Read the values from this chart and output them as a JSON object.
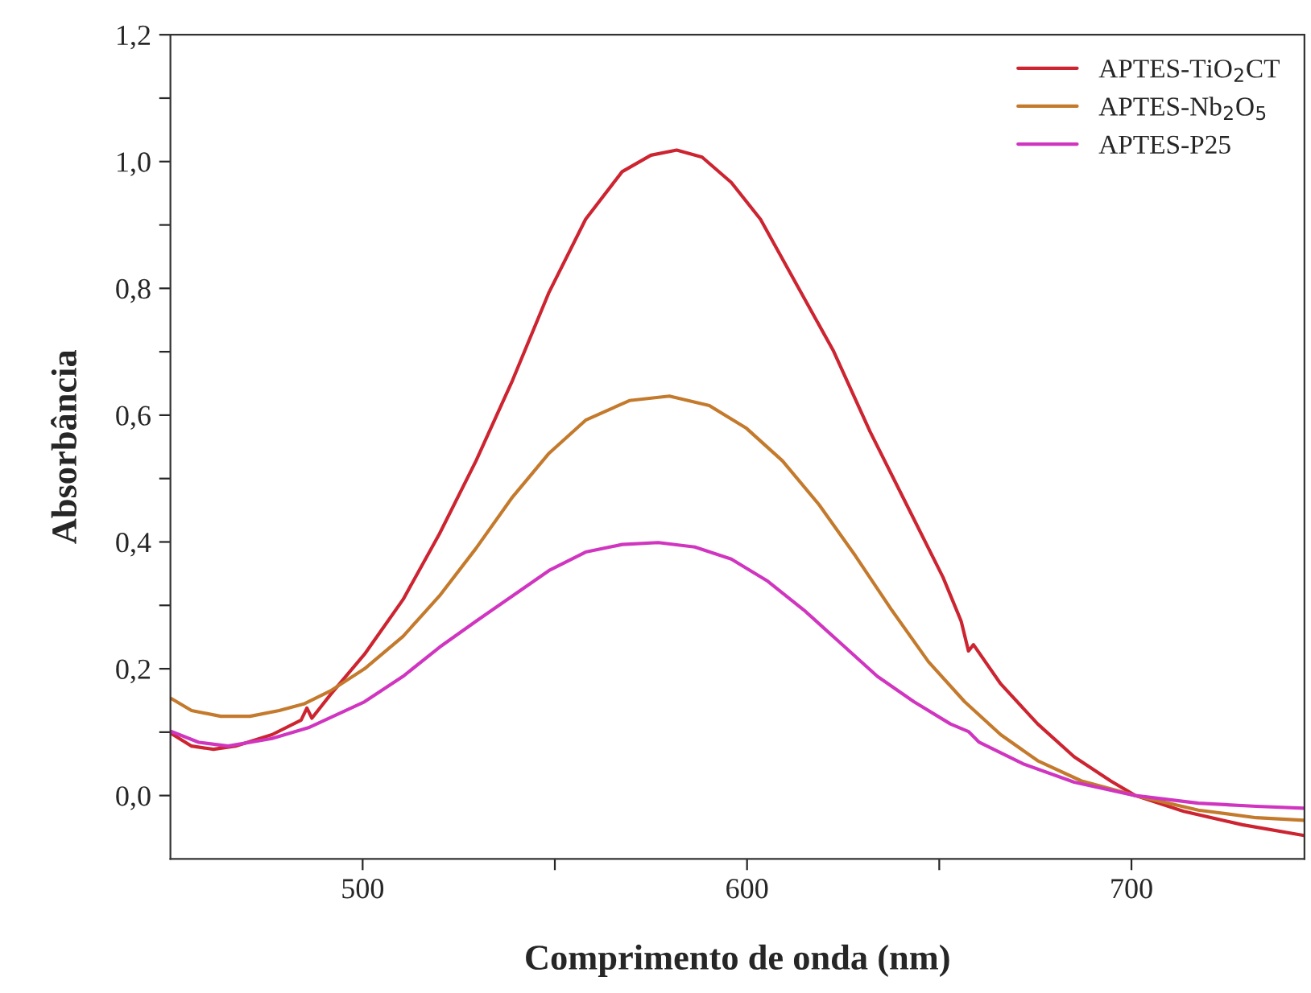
{
  "chart_data": {
    "type": "line",
    "xlabel": "Comprimento de onda (nm)",
    "ylabel": "Absorbância",
    "xlim": [
      450,
      745
    ],
    "ylim": [
      -0.1,
      1.2
    ],
    "xticks": [
      500,
      {
        "value": 550,
        "label": null
      },
      600,
      {
        "value": 650,
        "label": null
      },
      700
    ],
    "yticks": [
      {
        "value": 0,
        "label": "0,0"
      },
      {
        "value": 0.1,
        "label": null
      },
      {
        "value": 0.2,
        "label": "0,2"
      },
      {
        "value": 0.3,
        "label": null
      },
      {
        "value": 0.4,
        "label": "0,4"
      },
      {
        "value": 0.5,
        "label": null
      },
      {
        "value": 0.6,
        "label": "0,6"
      },
      {
        "value": 0.7,
        "label": null
      },
      {
        "value": 0.8,
        "label": "0,8"
      },
      {
        "value": 0.9,
        "label": null
      },
      {
        "value": 1.0,
        "label": "1,0"
      },
      {
        "value": 1.1,
        "label": null
      },
      {
        "value": 1.2,
        "label": "1,2"
      }
    ],
    "grid": false,
    "legend": "top right",
    "marker": "none",
    "line_style": "solid",
    "series": [
      {
        "name": "APTES-TiO$_{2}$CT",
        "color": "#cc2430",
        "x": [
          450.2,
          455.5,
          461.2,
          466.9,
          476.4,
          484.0,
          485.5,
          486.8,
          491.6,
          500.5,
          510.5,
          520.0,
          529.5,
          539.0,
          548.5,
          558.0,
          567.5,
          575.0,
          581.7,
          588.3,
          595.9,
          603.5,
          613.0,
          622.5,
          632.0,
          641.5,
          651.0,
          655.7,
          657.6,
          658.9,
          666.0,
          675.6,
          685.1,
          694.6,
          701.0,
          713.6,
          728.8,
          744.9
        ],
        "values": [
          0.098,
          0.078,
          0.073,
          0.078,
          0.096,
          0.119,
          0.138,
          0.122,
          0.159,
          0.223,
          0.309,
          0.413,
          0.528,
          0.655,
          0.794,
          0.909,
          0.984,
          1.01,
          1.018,
          1.007,
          0.967,
          0.909,
          0.805,
          0.701,
          0.574,
          0.459,
          0.344,
          0.275,
          0.228,
          0.238,
          0.176,
          0.113,
          0.061,
          0.023,
          0.0,
          -0.025,
          -0.046,
          -0.063
        ]
      },
      {
        "name": "APTES-Nb$_{2}$O$_{5}$",
        "color": "#c47a2c",
        "x": [
          450.2,
          455.5,
          463.1,
          470.7,
          478.3,
          484.9,
          491.6,
          500.5,
          510.5,
          520.0,
          529.5,
          539.0,
          548.5,
          558.0,
          569.4,
          579.8,
          590.2,
          599.7,
          609.2,
          618.7,
          628.2,
          637.7,
          647.2,
          656.6,
          666.0,
          675.6,
          687.0,
          701.0,
          717.4,
          732.5,
          744.9
        ],
        "values": [
          0.153,
          0.134,
          0.125,
          0.125,
          0.134,
          0.145,
          0.165,
          0.2,
          0.251,
          0.315,
          0.39,
          0.471,
          0.54,
          0.592,
          0.623,
          0.63,
          0.615,
          0.58,
          0.528,
          0.459,
          0.378,
          0.292,
          0.211,
          0.148,
          0.096,
          0.055,
          0.023,
          0.0,
          -0.023,
          -0.035,
          -0.039
        ]
      },
      {
        "name": "APTES-P25",
        "color": "#d035c0",
        "x": [
          450.2,
          457.4,
          465.0,
          476.4,
          485.9,
          500.5,
          510.5,
          520.0,
          529.5,
          539.0,
          548.5,
          558.0,
          567.5,
          576.9,
          586.4,
          595.9,
          605.4,
          614.9,
          624.4,
          633.9,
          643.4,
          652.9,
          657.6,
          660.4,
          671.8,
          685.1,
          701.0,
          717.4,
          732.5,
          744.9
        ],
        "values": [
          0.101,
          0.084,
          0.078,
          0.09,
          0.107,
          0.148,
          0.188,
          0.234,
          0.275,
          0.315,
          0.355,
          0.384,
          0.396,
          0.399,
          0.392,
          0.373,
          0.338,
          0.292,
          0.24,
          0.188,
          0.148,
          0.113,
          0.101,
          0.084,
          0.05,
          0.021,
          0.0,
          -0.012,
          -0.017,
          -0.02
        ]
      }
    ]
  }
}
